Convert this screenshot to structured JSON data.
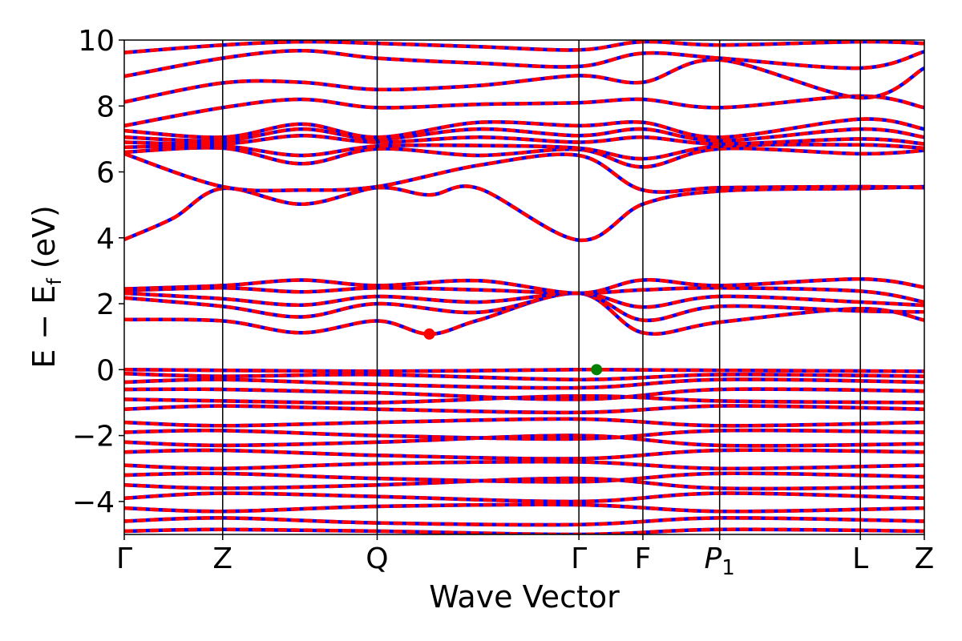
{
  "chart_data": {
    "type": "line",
    "xlabel": "Wave Vector",
    "ylabel": "E − E",
    "ylabel_sub": "f",
    "ylabel_unit": " (eV)",
    "ylim": [
      -5,
      10
    ],
    "yticks": [
      "−4",
      "−2",
      "0",
      "2",
      "4",
      "6",
      "8",
      "10"
    ],
    "ytick_values": [
      -4,
      -2,
      0,
      2,
      4,
      6,
      8,
      10
    ],
    "xlim": [
      0,
      8.13
    ],
    "kpoint_positions": [
      0,
      1.0,
      2.57,
      4.62,
      5.27,
      6.05,
      7.48,
      8.13
    ],
    "kpoint_labels": [
      "Γ",
      "Z",
      "Q",
      "Γ",
      "F",
      "P",
      "L",
      "Z"
    ],
    "kpoint_label_subs": [
      "",
      "",
      "",
      "",
      "",
      "1",
      "",
      ""
    ],
    "grid": false,
    "legend": "none",
    "colors": {
      "spin_down": "#0000ff",
      "spin_up": "#ff0000",
      "vbm": "#008000",
      "cbm": "#ff0000"
    },
    "cbm_point": {
      "x": 3.1,
      "y": 1.08
    },
    "vbm_point": {
      "x": 4.8,
      "y": 0.0
    },
    "series": [
      {
        "points": [
          [
            0,
            1.52
          ],
          [
            1.0,
            1.48
          ],
          [
            1.8,
            1.12
          ],
          [
            2.57,
            1.48
          ],
          [
            3.1,
            1.08
          ],
          [
            3.6,
            1.5
          ],
          [
            4.62,
            2.32
          ],
          [
            5.27,
            1.12
          ],
          [
            6.05,
            1.44
          ],
          [
            7.48,
            1.85
          ],
          [
            8.13,
            1.5
          ]
        ]
      },
      {
        "points": [
          [
            0,
            2.18
          ],
          [
            1.0,
            1.92
          ],
          [
            1.8,
            1.6
          ],
          [
            2.57,
            2.0
          ],
          [
            3.6,
            1.74
          ],
          [
            4.62,
            2.32
          ],
          [
            5.27,
            1.5
          ],
          [
            6.05,
            1.92
          ],
          [
            7.48,
            1.78
          ],
          [
            8.13,
            1.75
          ]
        ]
      },
      {
        "points": [
          [
            0,
            2.32
          ],
          [
            1.0,
            2.15
          ],
          [
            1.8,
            1.96
          ],
          [
            2.57,
            2.22
          ],
          [
            3.6,
            2.05
          ],
          [
            4.62,
            2.32
          ],
          [
            5.27,
            1.9
          ],
          [
            6.05,
            2.22
          ],
          [
            7.48,
            2.05
          ],
          [
            8.13,
            1.95
          ]
        ]
      },
      {
        "points": [
          [
            0,
            2.4
          ],
          [
            1.0,
            2.48
          ],
          [
            1.8,
            2.36
          ],
          [
            2.57,
            2.48
          ],
          [
            3.6,
            2.42
          ],
          [
            4.62,
            2.32
          ],
          [
            5.27,
            2.42
          ],
          [
            6.05,
            2.48
          ],
          [
            7.48,
            2.38
          ],
          [
            8.13,
            2.05
          ]
        ]
      },
      {
        "points": [
          [
            0,
            2.45
          ],
          [
            1.0,
            2.55
          ],
          [
            1.8,
            2.72
          ],
          [
            2.57,
            2.55
          ],
          [
            3.6,
            2.7
          ],
          [
            4.62,
            2.32
          ],
          [
            5.27,
            2.72
          ],
          [
            6.05,
            2.55
          ],
          [
            7.48,
            2.75
          ],
          [
            8.13,
            2.5
          ]
        ]
      },
      {
        "points": [
          [
            0,
            3.95
          ],
          [
            0.5,
            4.6
          ],
          [
            1.0,
            5.5
          ],
          [
            1.8,
            5.02
          ],
          [
            2.57,
            5.52
          ],
          [
            3.1,
            5.3
          ],
          [
            3.6,
            5.5
          ],
          [
            4.62,
            3.93
          ],
          [
            5.27,
            5.02
          ],
          [
            6.05,
            5.42
          ],
          [
            7.48,
            5.5
          ],
          [
            8.13,
            5.55
          ]
        ]
      },
      {
        "points": [
          [
            0,
            6.55
          ],
          [
            1.0,
            5.55
          ],
          [
            1.8,
            5.45
          ],
          [
            2.57,
            5.55
          ],
          [
            3.6,
            6.2
          ],
          [
            4.62,
            6.5
          ],
          [
            5.27,
            5.45
          ],
          [
            6.05,
            5.52
          ],
          [
            7.48,
            5.55
          ],
          [
            8.13,
            5.52
          ]
        ]
      },
      {
        "points": [
          [
            0,
            6.6
          ],
          [
            1.0,
            6.72
          ],
          [
            1.8,
            6.25
          ],
          [
            2.57,
            6.7
          ],
          [
            3.6,
            6.5
          ],
          [
            4.62,
            6.68
          ],
          [
            5.27,
            6.15
          ],
          [
            6.05,
            6.7
          ],
          [
            7.48,
            6.55
          ],
          [
            8.13,
            6.65
          ]
        ]
      },
      {
        "points": [
          [
            0,
            6.75
          ],
          [
            1.0,
            6.78
          ],
          [
            1.8,
            6.5
          ],
          [
            2.57,
            6.78
          ],
          [
            3.6,
            6.8
          ],
          [
            4.62,
            6.72
          ],
          [
            5.27,
            6.4
          ],
          [
            6.05,
            6.78
          ],
          [
            7.48,
            6.82
          ],
          [
            8.13,
            6.72
          ]
        ]
      },
      {
        "points": [
          [
            0,
            6.9
          ],
          [
            1.0,
            6.85
          ],
          [
            1.8,
            7.1
          ],
          [
            2.57,
            6.9
          ],
          [
            3.6,
            7.05
          ],
          [
            4.62,
            6.9
          ],
          [
            5.27,
            7.05
          ],
          [
            6.05,
            6.85
          ],
          [
            7.48,
            7.0
          ],
          [
            8.13,
            6.85
          ]
        ]
      },
      {
        "points": [
          [
            0,
            7.05
          ],
          [
            1.0,
            6.95
          ],
          [
            1.8,
            7.3
          ],
          [
            2.57,
            7.0
          ],
          [
            3.6,
            7.3
          ],
          [
            4.62,
            7.1
          ],
          [
            5.27,
            7.3
          ],
          [
            6.05,
            6.95
          ],
          [
            7.48,
            7.3
          ],
          [
            8.13,
            7.05
          ]
        ]
      },
      {
        "points": [
          [
            0,
            7.25
          ],
          [
            1.0,
            7.05
          ],
          [
            1.8,
            7.45
          ],
          [
            2.57,
            7.05
          ],
          [
            3.6,
            7.5
          ],
          [
            4.62,
            7.4
          ],
          [
            5.27,
            7.5
          ],
          [
            6.05,
            7.05
          ],
          [
            7.48,
            7.6
          ],
          [
            8.13,
            7.3
          ]
        ]
      },
      {
        "points": [
          [
            0,
            7.4
          ],
          [
            1.0,
            7.95
          ],
          [
            1.8,
            8.2
          ],
          [
            2.57,
            7.95
          ],
          [
            3.6,
            8.05
          ],
          [
            4.62,
            8.1
          ],
          [
            5.27,
            8.2
          ],
          [
            6.05,
            7.95
          ],
          [
            7.48,
            8.3
          ],
          [
            8.13,
            7.95
          ]
        ]
      },
      {
        "points": [
          [
            0,
            8.12
          ],
          [
            1.0,
            8.7
          ],
          [
            1.8,
            8.72
          ],
          [
            2.57,
            8.5
          ],
          [
            3.6,
            8.62
          ],
          [
            4.62,
            8.92
          ],
          [
            5.27,
            8.72
          ],
          [
            6.05,
            9.4
          ],
          [
            7.48,
            8.25
          ],
          [
            8.13,
            9.15
          ]
        ]
      },
      {
        "points": [
          [
            0,
            8.9
          ],
          [
            1.0,
            9.45
          ],
          [
            1.8,
            9.68
          ],
          [
            2.57,
            9.45
          ],
          [
            3.6,
            9.3
          ],
          [
            4.62,
            9.2
          ],
          [
            5.27,
            9.6
          ],
          [
            6.05,
            9.45
          ],
          [
            7.48,
            9.15
          ],
          [
            8.13,
            9.65
          ]
        ]
      },
      {
        "points": [
          [
            0,
            9.62
          ],
          [
            1.0,
            9.85
          ],
          [
            1.8,
            9.95
          ],
          [
            2.57,
            9.9
          ],
          [
            3.6,
            9.8
          ],
          [
            4.62,
            9.7
          ],
          [
            5.27,
            9.95
          ],
          [
            6.05,
            9.85
          ],
          [
            7.48,
            9.95
          ],
          [
            8.13,
            9.9
          ]
        ]
      },
      {
        "points": [
          [
            0,
            0.0
          ],
          [
            1.0,
            -0.02
          ],
          [
            2.57,
            -0.05
          ],
          [
            4.62,
            0.0
          ],
          [
            4.8,
            0.0
          ],
          [
            6.05,
            -0.02
          ],
          [
            8.13,
            -0.05
          ]
        ]
      },
      {
        "points": [
          [
            0,
            -0.12
          ],
          [
            1.0,
            -0.2
          ],
          [
            2.57,
            -0.15
          ],
          [
            4.62,
            -0.3
          ],
          [
            6.05,
            -0.15
          ],
          [
            8.13,
            -0.2
          ]
        ]
      },
      {
        "points": [
          [
            0,
            -0.38
          ],
          [
            1.0,
            -0.3
          ],
          [
            2.57,
            -0.45
          ],
          [
            4.62,
            -0.55
          ],
          [
            6.05,
            -0.3
          ],
          [
            8.13,
            -0.38
          ]
        ]
      },
      {
        "points": [
          [
            0,
            -0.6
          ],
          [
            1.0,
            -0.6
          ],
          [
            2.57,
            -0.7
          ],
          [
            4.62,
            -0.9
          ],
          [
            6.05,
            -0.6
          ],
          [
            8.13,
            -0.65
          ]
        ]
      },
      {
        "points": [
          [
            0,
            -0.9
          ],
          [
            1.0,
            -0.95
          ],
          [
            2.57,
            -1.0
          ],
          [
            4.62,
            -0.8
          ],
          [
            6.05,
            -0.95
          ],
          [
            8.13,
            -1.0
          ]
        ]
      },
      {
        "points": [
          [
            0,
            -1.2
          ],
          [
            1.0,
            -1.1
          ],
          [
            2.57,
            -1.2
          ],
          [
            4.62,
            -1.3
          ],
          [
            6.05,
            -1.1
          ],
          [
            8.13,
            -1.2
          ]
        ]
      },
      {
        "points": [
          [
            0,
            -1.6
          ],
          [
            1.0,
            -1.7
          ],
          [
            2.57,
            -1.6
          ],
          [
            4.62,
            -1.5
          ],
          [
            6.05,
            -1.7
          ],
          [
            8.13,
            -1.6
          ]
        ]
      },
      {
        "points": [
          [
            0,
            -1.9
          ],
          [
            1.0,
            -1.85
          ],
          [
            2.57,
            -2.0
          ],
          [
            4.62,
            -2.1
          ],
          [
            6.05,
            -1.85
          ],
          [
            8.13,
            -1.9
          ]
        ]
      },
      {
        "points": [
          [
            0,
            -2.2
          ],
          [
            1.0,
            -2.3
          ],
          [
            2.57,
            -2.2
          ],
          [
            4.62,
            -2.0
          ],
          [
            6.05,
            -2.3
          ],
          [
            8.13,
            -2.25
          ]
        ]
      },
      {
        "points": [
          [
            0,
            -2.5
          ],
          [
            1.0,
            -2.45
          ],
          [
            2.57,
            -2.6
          ],
          [
            4.62,
            -2.7
          ],
          [
            6.05,
            -2.45
          ],
          [
            8.13,
            -2.5
          ]
        ]
      },
      {
        "points": [
          [
            0,
            -2.9
          ],
          [
            1.0,
            -3.0
          ],
          [
            2.57,
            -2.85
          ],
          [
            4.62,
            -2.8
          ],
          [
            6.05,
            -3.0
          ],
          [
            8.13,
            -2.9
          ]
        ]
      },
      {
        "points": [
          [
            0,
            -3.2
          ],
          [
            1.0,
            -3.15
          ],
          [
            2.57,
            -3.3
          ],
          [
            4.62,
            -3.4
          ],
          [
            6.05,
            -3.15
          ],
          [
            8.13,
            -3.25
          ]
        ]
      },
      {
        "points": [
          [
            0,
            -3.5
          ],
          [
            1.0,
            -3.6
          ],
          [
            2.57,
            -3.5
          ],
          [
            4.62,
            -3.3
          ],
          [
            6.05,
            -3.6
          ],
          [
            8.13,
            -3.55
          ]
        ]
      },
      {
        "points": [
          [
            0,
            -3.9
          ],
          [
            1.0,
            -3.75
          ],
          [
            2.57,
            -3.85
          ],
          [
            4.62,
            -4.0
          ],
          [
            6.05,
            -3.75
          ],
          [
            8.13,
            -3.9
          ]
        ]
      },
      {
        "points": [
          [
            0,
            -4.2
          ],
          [
            1.0,
            -4.3
          ],
          [
            2.57,
            -4.15
          ],
          [
            4.62,
            -4.1
          ],
          [
            6.05,
            -4.3
          ],
          [
            8.13,
            -4.2
          ]
        ]
      },
      {
        "points": [
          [
            0,
            -4.6
          ],
          [
            1.0,
            -4.5
          ],
          [
            2.57,
            -4.65
          ],
          [
            4.62,
            -4.7
          ],
          [
            6.05,
            -4.5
          ],
          [
            8.13,
            -4.6
          ]
        ]
      },
      {
        "points": [
          [
            0,
            -4.9
          ],
          [
            1.0,
            -4.85
          ],
          [
            2.57,
            -4.9
          ],
          [
            4.62,
            -5.0
          ],
          [
            6.05,
            -4.85
          ],
          [
            8.13,
            -4.9
          ]
        ]
      }
    ]
  }
}
